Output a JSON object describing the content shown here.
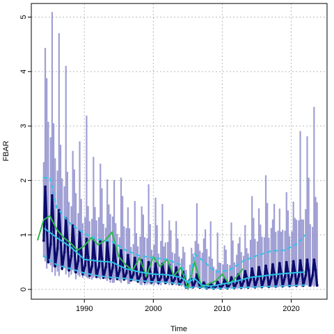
{
  "chart_data": {
    "type": "line",
    "title": "",
    "xlabel": "Time",
    "ylabel": "FBAR",
    "xlim": [
      1982.3,
      2025.2
    ],
    "ylim": [
      -0.18,
      5.25
    ],
    "x_ticks": [
      1990,
      2000,
      2010,
      2020
    ],
    "y_ticks": [
      0,
      1,
      2,
      3,
      4,
      5
    ],
    "grid": true,
    "legend": "none",
    "colors": {
      "uncertainty_band": "#8e8ecc",
      "seasonal_estimate": "#0b0b6b",
      "median": "#29c6e6",
      "quantile_bounds": "#29c6e6",
      "observed": "#2bb84a"
    },
    "series": [
      {
        "style": "green-line",
        "x": [
          1983.2,
          1984.1,
          1985.0,
          1986.0,
          1987.0,
          1988.0,
          1989.0,
          1990.0,
          1991.0,
          1992.0,
          1993.0,
          1994.0,
          1995.0,
          1996.0,
          1997.0,
          1998.0,
          1999.0,
          2000.0,
          2001.0,
          2002.0,
          2003.0,
          2004.0,
          2005.0,
          2006.0,
          2007.0,
          2008.0,
          2009.0,
          2010.0,
          2011.0,
          2012.0,
          2013.0
        ],
        "y": [
          0.9,
          1.28,
          1.35,
          1.1,
          0.95,
          0.85,
          0.72,
          0.8,
          0.95,
          0.82,
          0.9,
          1.05,
          0.6,
          0.45,
          0.35,
          0.58,
          0.25,
          0.6,
          0.42,
          0.55,
          0.25,
          0.4,
          0.02,
          0.5,
          0.05,
          0.1,
          0.15,
          0.28,
          0.1,
          0.22,
          0.38
        ]
      },
      {
        "style": "cyan-median",
        "x": [
          1984.2,
          1986.0,
          1988.0,
          1990.0,
          1992.0,
          1994.0,
          1996.0,
          1998.0,
          2000.0,
          2002.0,
          2004.0,
          2005.0,
          2006.0,
          2007.0,
          2008.0,
          2009.0,
          2010.0,
          2011.0,
          2012.0,
          2014.0,
          2016.0,
          2018.0,
          2020.0,
          2022.0
        ],
        "y": [
          1.12,
          0.95,
          0.78,
          0.55,
          0.52,
          0.5,
          0.38,
          0.32,
          0.28,
          0.27,
          0.22,
          0.13,
          0.2,
          0.08,
          0.06,
          0.07,
          0.1,
          0.12,
          0.15,
          0.22,
          0.25,
          0.28,
          0.3,
          0.32
        ]
      },
      {
        "style": "cyan-dashed-upper",
        "x": [
          1984.0,
          1985.0,
          1986.0,
          1988.0,
          1990.0,
          1992.0,
          1994.0,
          1996.0,
          1998.0,
          2000.0,
          2002.0,
          2004.0,
          2005.2,
          2006.0,
          2007.0,
          2009.0,
          2011.0,
          2013.0,
          2015.0,
          2017.0,
          2019.0,
          2021.0,
          2022.0
        ],
        "y": [
          2.05,
          2.05,
          1.5,
          1.2,
          1.02,
          0.92,
          0.88,
          0.72,
          0.62,
          0.58,
          0.55,
          0.45,
          0.1,
          0.65,
          0.55,
          0.32,
          0.35,
          0.52,
          0.62,
          0.7,
          0.72,
          0.85,
          1.0
        ]
      },
      {
        "style": "cyan-dashed-lower",
        "x": [
          1984.0,
          1986.0,
          1988.0,
          1990.0,
          1992.0,
          1994.0,
          1996.0,
          1998.0,
          2000.0,
          2002.0,
          2004.0,
          2005.0,
          2006.0,
          2008.0,
          2010.0,
          2012.0,
          2014.0,
          2016.0,
          2018.0,
          2020.0,
          2022.0
        ],
        "y": [
          0.62,
          0.45,
          0.38,
          0.3,
          0.25,
          0.22,
          0.2,
          0.16,
          0.14,
          0.13,
          0.1,
          0.02,
          0.05,
          0.02,
          0.02,
          0.03,
          0.04,
          0.05,
          0.06,
          0.07,
          0.08
        ]
      }
    ]
  }
}
